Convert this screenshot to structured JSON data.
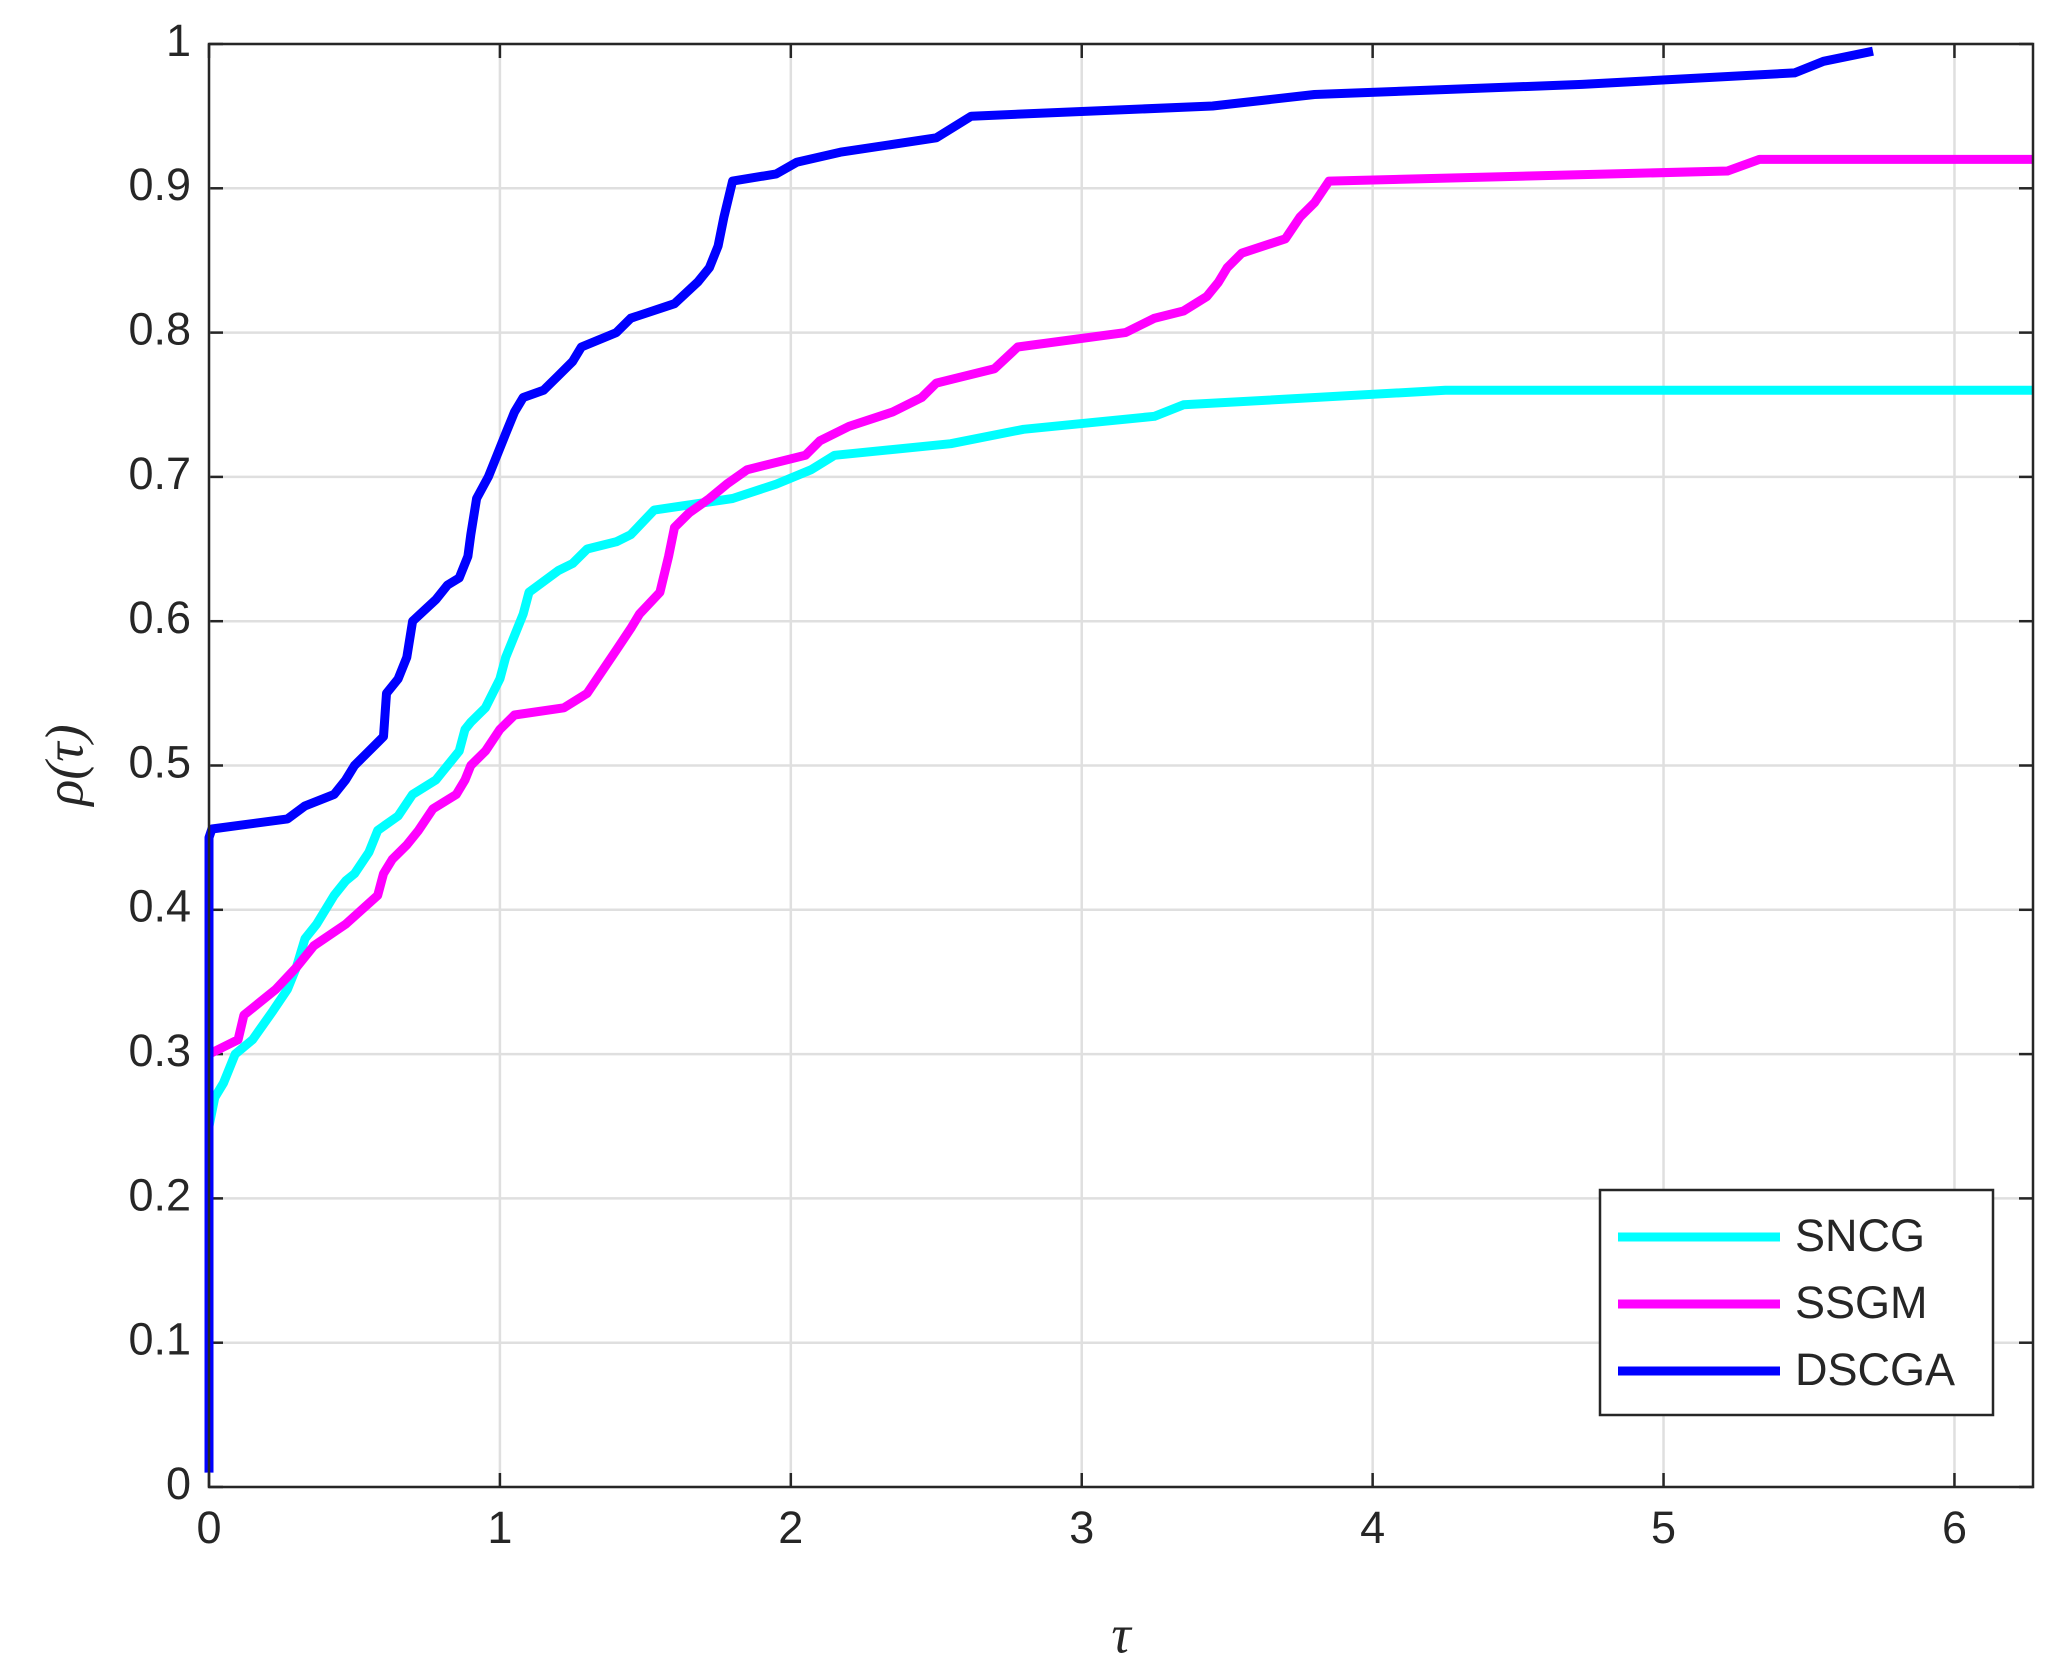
{
  "chart_data": {
    "type": "line",
    "xlabel": "τ",
    "ylabel": "ρ(τ)",
    "xlim": [
      0,
      6.27
    ],
    "ylim": [
      0,
      1
    ],
    "xticks": [
      0,
      1,
      2,
      3,
      4,
      5,
      6
    ],
    "yticks": [
      0,
      0.1,
      0.2,
      0.3,
      0.4,
      0.5,
      0.6,
      0.7,
      0.8,
      0.9,
      1
    ],
    "grid": true,
    "legend": "lower right",
    "series": [
      {
        "name": "SNCG",
        "color": "#00ffff",
        "x": [
          0,
          0.02,
          0.05,
          0.09,
          0.15,
          0.22,
          0.27,
          0.3,
          0.33,
          0.37,
          0.43,
          0.47,
          0.5,
          0.55,
          0.58,
          0.65,
          0.7,
          0.78,
          0.8,
          0.86,
          0.88,
          0.9,
          0.95,
          1.0,
          1.02,
          1.05,
          1.08,
          1.1,
          1.2,
          1.25,
          1.3,
          1.4,
          1.45,
          1.53,
          1.8,
          1.95,
          2.07,
          2.15,
          2.55,
          2.8,
          3.25,
          3.35,
          4.25,
          6.27
        ],
        "values": [
          0.25,
          0.27,
          0.28,
          0.3,
          0.31,
          0.33,
          0.345,
          0.36,
          0.38,
          0.39,
          0.41,
          0.42,
          0.425,
          0.44,
          0.455,
          0.465,
          0.48,
          0.49,
          0.495,
          0.51,
          0.525,
          0.53,
          0.54,
          0.56,
          0.575,
          0.59,
          0.605,
          0.62,
          0.635,
          0.64,
          0.65,
          0.655,
          0.66,
          0.677,
          0.685,
          0.695,
          0.705,
          0.715,
          0.723,
          0.733,
          0.742,
          0.75,
          0.76,
          0.76
        ]
      },
      {
        "name": "SSGM",
        "color": "#ff00ff",
        "x": [
          0,
          0.1,
          0.12,
          0.23,
          0.3,
          0.36,
          0.47,
          0.58,
          0.6,
          0.63,
          0.68,
          0.72,
          0.77,
          0.85,
          0.88,
          0.9,
          0.95,
          1.0,
          1.05,
          1.22,
          1.3,
          1.35,
          1.4,
          1.45,
          1.48,
          1.55,
          1.58,
          1.6,
          1.65,
          1.72,
          1.78,
          1.85,
          2.05,
          2.1,
          2.2,
          2.35,
          2.45,
          2.5,
          2.7,
          2.78,
          3.15,
          3.25,
          3.35,
          3.43,
          3.47,
          3.5,
          3.55,
          3.7,
          3.75,
          3.8,
          3.85,
          5.22,
          5.33,
          6.27
        ],
        "values": [
          0.3,
          0.31,
          0.327,
          0.345,
          0.36,
          0.375,
          0.39,
          0.41,
          0.425,
          0.435,
          0.445,
          0.455,
          0.47,
          0.48,
          0.49,
          0.5,
          0.51,
          0.525,
          0.535,
          0.54,
          0.55,
          0.565,
          0.58,
          0.595,
          0.605,
          0.62,
          0.645,
          0.665,
          0.675,
          0.685,
          0.695,
          0.705,
          0.715,
          0.725,
          0.735,
          0.745,
          0.755,
          0.765,
          0.775,
          0.79,
          0.8,
          0.81,
          0.815,
          0.825,
          0.835,
          0.845,
          0.855,
          0.865,
          0.88,
          0.89,
          0.905,
          0.912,
          0.92,
          0.92
        ]
      },
      {
        "name": "DSCGA",
        "color": "#0000ff",
        "x": [
          0,
          0,
          0.01,
          0.27,
          0.33,
          0.43,
          0.47,
          0.5,
          0.55,
          0.6,
          0.61,
          0.65,
          0.68,
          0.7,
          0.78,
          0.82,
          0.86,
          0.89,
          0.9,
          0.92,
          0.96,
          0.99,
          1.02,
          1.05,
          1.08,
          1.15,
          1.2,
          1.25,
          1.28,
          1.4,
          1.45,
          1.6,
          1.68,
          1.72,
          1.75,
          1.77,
          1.8,
          1.95,
          2.02,
          2.17,
          2.5,
          2.62,
          3.45,
          3.8,
          4.72,
          5.45,
          5.55,
          5.72
        ],
        "values": [
          0.01,
          0.45,
          0.456,
          0.463,
          0.472,
          0.48,
          0.49,
          0.5,
          0.51,
          0.52,
          0.55,
          0.56,
          0.575,
          0.6,
          0.615,
          0.625,
          0.63,
          0.645,
          0.66,
          0.685,
          0.7,
          0.715,
          0.73,
          0.745,
          0.755,
          0.76,
          0.77,
          0.78,
          0.79,
          0.8,
          0.81,
          0.82,
          0.835,
          0.845,
          0.86,
          0.88,
          0.905,
          0.91,
          0.918,
          0.925,
          0.935,
          0.95,
          0.957,
          0.965,
          0.972,
          0.98,
          0.988,
          0.995
        ]
      }
    ]
  }
}
